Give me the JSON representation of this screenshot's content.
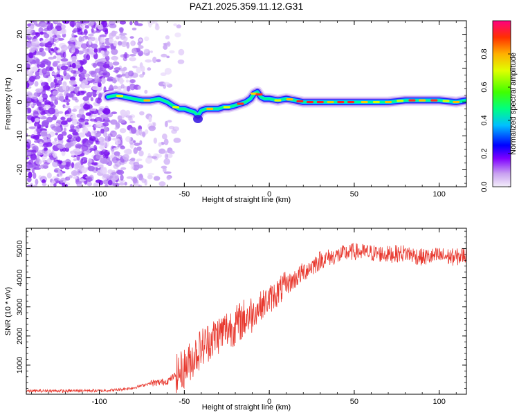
{
  "title": "PAZ1.2025.359.11.12.G31",
  "chart_data": [
    {
      "type": "heatmap",
      "xlabel": "Height of straight line (km)",
      "ylabel": "Frequency (Hz)",
      "xlim": [
        -143,
        116
      ],
      "ylim": [
        -25,
        24
      ],
      "x_ticks": [
        -100,
        -50,
        0,
        50,
        100
      ],
      "x_tick_labels": [
        "-100",
        "-50",
        "0",
        "50",
        "100"
      ],
      "y_ticks": [
        -20,
        -10,
        0,
        10,
        20
      ],
      "y_tick_labels": [
        "-20",
        "-10",
        "0",
        "10",
        "20"
      ],
      "colorbar": {
        "label": "Normalized spectral amplitude",
        "range": [
          0,
          1
        ],
        "ticks": [
          0.0,
          0.2,
          0.4,
          0.6,
          0.8
        ],
        "tick_labels": [
          "0.0",
          "0.2",
          "0.4",
          "0.6",
          "0.8"
        ]
      },
      "ridge": {
        "x": [
          -95,
          -90,
          -85,
          -80,
          -75,
          -70,
          -65,
          -60,
          -57,
          -53,
          -50,
          -47,
          -44,
          -42,
          -40,
          -37,
          -33,
          -30,
          -27,
          -24,
          -20,
          -17,
          -14,
          -11,
          -9,
          -7,
          -5,
          -3,
          0,
          5,
          10,
          15,
          20,
          30,
          40,
          50,
          60,
          70,
          80,
          90,
          100,
          110,
          116
        ],
        "y": [
          1.5,
          2,
          1.5,
          1,
          0.5,
          0.5,
          1,
          0,
          -1,
          -2,
          -2,
          -2.5,
          -3,
          -4,
          -2.5,
          -2,
          -2,
          -2,
          -1.5,
          -1.5,
          -1,
          -0.5,
          0,
          1,
          2.5,
          3,
          1.5,
          1,
          1,
          0.5,
          1,
          0.5,
          0,
          0,
          0,
          0,
          0,
          0,
          0.5,
          0.5,
          0.5,
          0,
          0.5
        ]
      }
    },
    {
      "type": "line",
      "xlabel": "Height of straight line (km)",
      "ylabel": "SNR (10 * v/v)",
      "xlim": [
        -143,
        116
      ],
      "ylim": [
        0,
        5700
      ],
      "x_ticks": [
        -100,
        -50,
        0,
        50,
        100
      ],
      "x_tick_labels": [
        "-100",
        "-50",
        "0",
        "50",
        "100"
      ],
      "y_ticks": [
        1000,
        2000,
        3000,
        4000,
        5000
      ],
      "y_tick_labels": [
        "1000",
        "2000",
        "3000",
        "4000",
        "5000"
      ],
      "series": [
        {
          "name": "SNR",
          "color": "#e8382e",
          "x": [
            -143,
            -130,
            -120,
            -110,
            -100,
            -90,
            -80,
            -70,
            -65,
            -60,
            -55,
            -50,
            -45,
            -40,
            -35,
            -30,
            -25,
            -20,
            -15,
            -10,
            -5,
            0,
            5,
            10,
            15,
            20,
            25,
            30,
            35,
            40,
            45,
            50,
            60,
            70,
            80,
            90,
            100,
            110,
            116
          ],
          "values": [
            110,
            120,
            110,
            130,
            120,
            150,
            220,
            380,
            400,
            450,
            650,
            900,
            1250,
            1600,
            1850,
            2050,
            2250,
            2350,
            2600,
            2750,
            3050,
            3250,
            3500,
            3750,
            3950,
            4200,
            4400,
            4600,
            4700,
            4750,
            4850,
            4900,
            4850,
            4800,
            4850,
            4700,
            4750,
            4700,
            4800
          ]
        }
      ]
    }
  ]
}
